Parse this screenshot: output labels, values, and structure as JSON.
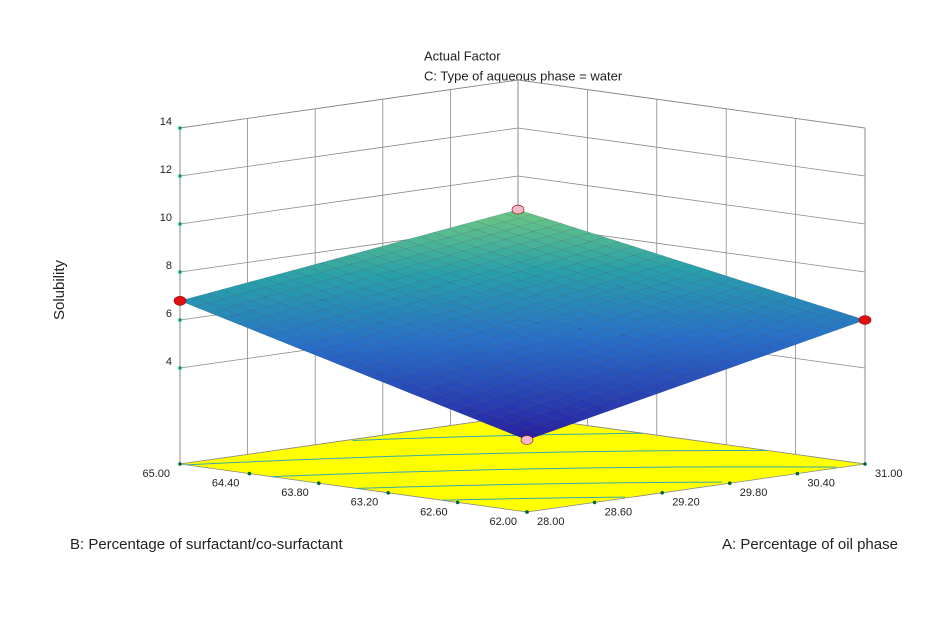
{
  "chart_data": {
    "type": "surface",
    "title": "Actual Factor",
    "subtitle": "C: Type of aqueous phase = water",
    "x_label": "A: Percentage of oil phase",
    "y_label": "B: Percentage of surfactant/co-surfactant",
    "z_label": "Solubility",
    "x": [
      28,
      31
    ],
    "y": [
      62,
      65
    ],
    "z": [
      [
        3.0,
        6.8
      ],
      [
        6.0,
        8.6
      ]
    ],
    "xlim": [
      28,
      31
    ],
    "ylim": [
      62,
      65
    ],
    "zlim": [
      0,
      14
    ],
    "xticks": [
      {
        "value": 28,
        "label": "28.00"
      },
      {
        "value": 28.6,
        "label": "28.60"
      },
      {
        "value": 29.2,
        "label": "29.20"
      },
      {
        "value": 29.8,
        "label": "29.80"
      },
      {
        "value": 30.4,
        "label": "30.40"
      },
      {
        "value": 31,
        "label": "31.00"
      }
    ],
    "yticks": [
      {
        "value": 62,
        "label": "62.00"
      },
      {
        "value": 62.6,
        "label": "62.60"
      },
      {
        "value": 63.2,
        "label": "63.20"
      },
      {
        "value": 63.8,
        "label": "63.80"
      },
      {
        "value": 64.4,
        "label": "64.40"
      },
      {
        "value": 65,
        "label": "65.00"
      }
    ],
    "zticks": [
      4,
      6,
      8,
      10,
      12,
      14
    ],
    "floor_color": "#ffff00",
    "contour_color": "#3aa8a8",
    "grid": true
  }
}
